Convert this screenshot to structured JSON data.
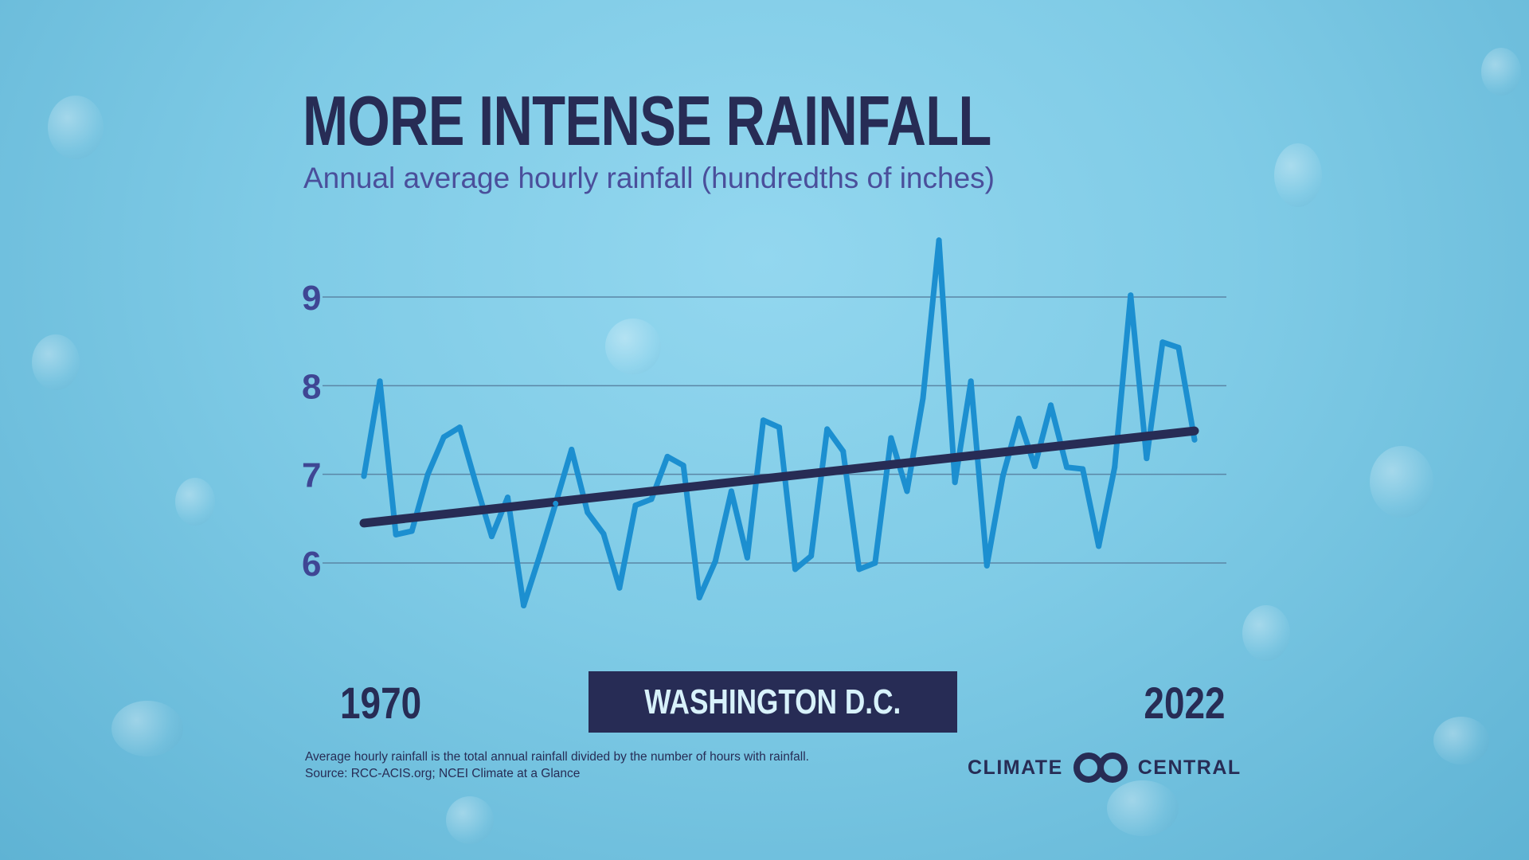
{
  "title": "MORE INTENSE RAINFALL",
  "subtitle": "Annual average hourly rainfall (hundredths of inches)",
  "location": "WASHINGTON D.C.",
  "year_start_label": "1970",
  "year_end_label": "2022",
  "footnote": {
    "line1": "Average hourly rainfall is the total annual rainfall divided by the number of hours with rainfall.",
    "line2": "Source: RCC-ACIS.org; NCEI Climate at a Glance"
  },
  "logo": {
    "left_word": "CLIMATE",
    "right_word": "CENTRAL",
    "icon": "interlocking-rings-icon"
  },
  "colors": {
    "title": "#272c55",
    "subtitle": "#4a4f9b",
    "data_line": "#1c8fd0",
    "trend_line": "#272c55",
    "gridline": "#5a86a6"
  },
  "chart_data": {
    "type": "line",
    "title": "MORE INTENSE RAINFALL",
    "ylabel": "Annual average hourly rainfall (hundredths of inches)",
    "xlim": [
      1970,
      2022
    ],
    "ylim": [
      5.3,
      9.7
    ],
    "yticks": [
      6,
      7,
      8,
      9
    ],
    "grid": true,
    "x": [
      1970,
      1971,
      1972,
      1973,
      1974,
      1975,
      1976,
      1977,
      1978,
      1979,
      1980,
      1981,
      1982,
      1983,
      1984,
      1985,
      1986,
      1987,
      1988,
      1989,
      1990,
      1991,
      1992,
      1993,
      1994,
      1995,
      1996,
      1997,
      1998,
      1999,
      2000,
      2001,
      2002,
      2003,
      2004,
      2005,
      2006,
      2007,
      2008,
      2009,
      2010,
      2011,
      2012,
      2013,
      2014,
      2015,
      2016,
      2017,
      2018,
      2019,
      2020,
      2021,
      2022
    ],
    "series": [
      {
        "values": [
          6.98,
          8.05,
          6.32,
          6.36,
          7.0,
          7.42,
          7.53,
          6.9,
          6.3,
          6.74,
          5.52,
          6.08,
          6.67,
          7.28,
          6.57,
          6.33,
          5.72,
          6.65,
          6.72,
          7.2,
          7.1,
          5.61,
          6.02,
          6.81,
          6.06,
          7.61,
          7.53,
          5.93,
          6.08,
          7.51,
          7.26,
          5.93,
          6.0,
          7.41,
          6.81,
          7.86,
          9.64,
          6.91,
          8.05,
          5.97,
          6.98,
          7.63,
          7.09,
          7.78,
          7.08,
          7.06,
          6.19,
          7.08,
          9.02,
          7.18,
          8.49,
          8.43,
          7.39
        ]
      }
    ],
    "trend": {
      "x": [
        1970,
        2022
      ],
      "y": [
        6.45,
        7.49
      ]
    }
  }
}
